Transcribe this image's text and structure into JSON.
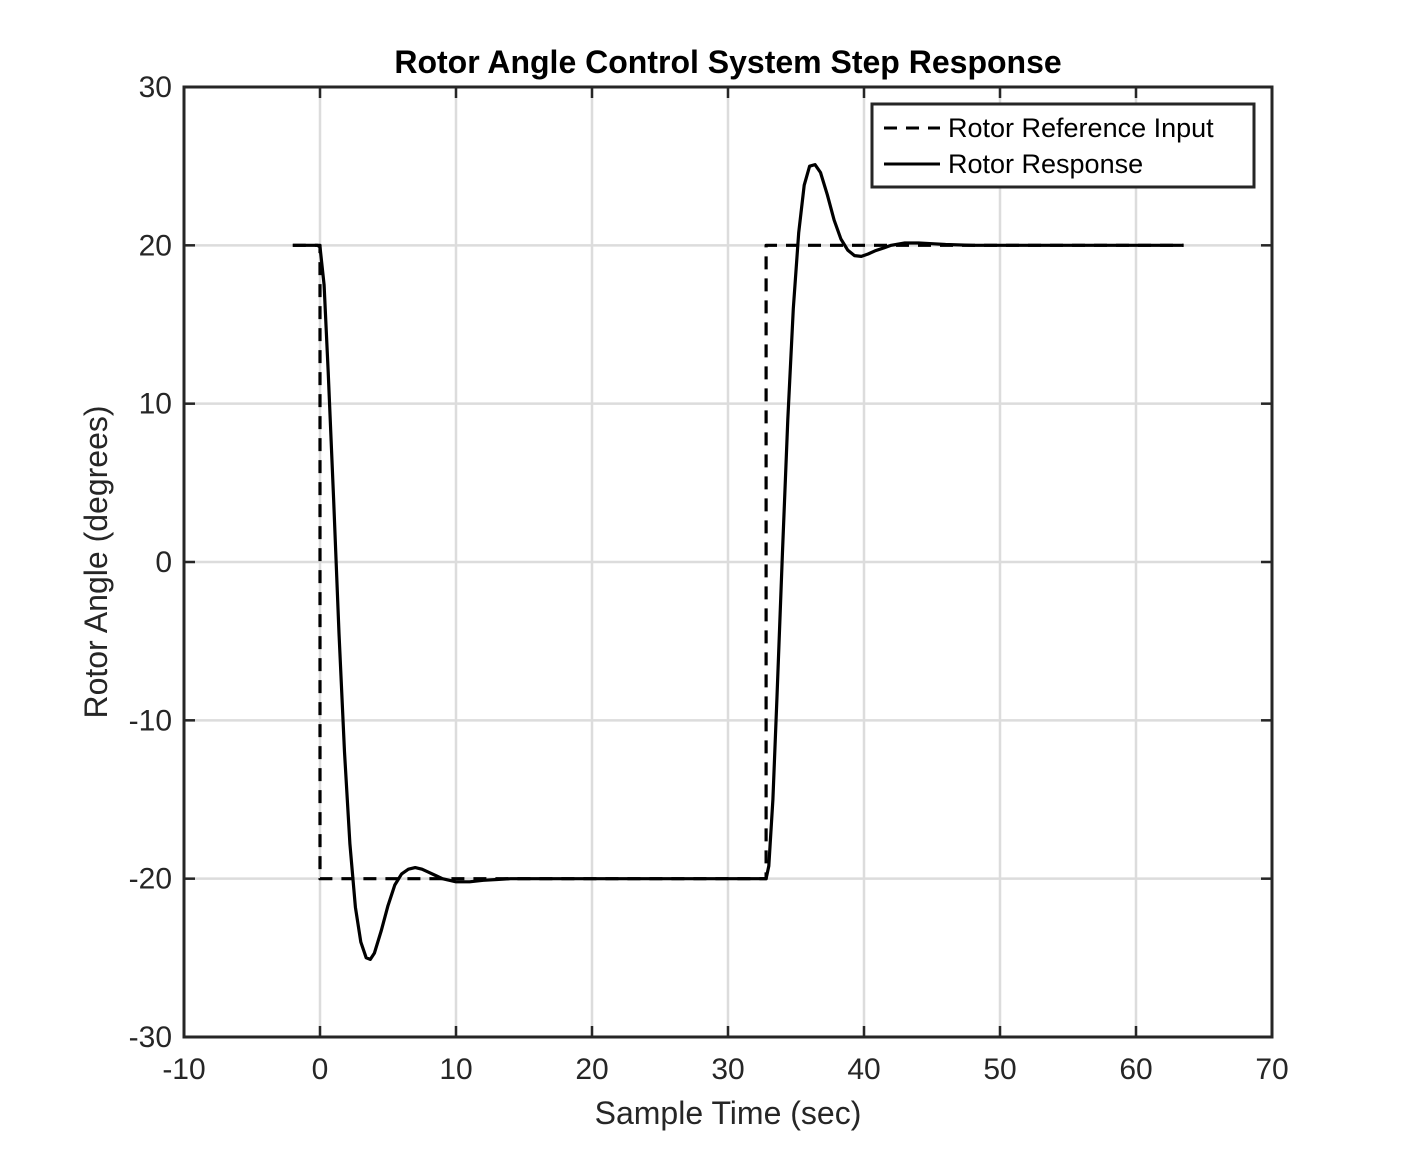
{
  "chart_data": {
    "type": "line",
    "title": "Rotor Angle Control System Step Response",
    "xlabel": "Sample Time (sec)",
    "ylabel": "Rotor Angle (degrees)",
    "xlim": [
      -10,
      70
    ],
    "ylim": [
      -30,
      30
    ],
    "xticks": [
      -10,
      0,
      10,
      20,
      30,
      40,
      50,
      60,
      70
    ],
    "yticks": [
      -30,
      -20,
      -10,
      0,
      10,
      20,
      30
    ],
    "xtick_labels": [
      "-10",
      "0",
      "10",
      "20",
      "30",
      "40",
      "50",
      "60",
      "70"
    ],
    "ytick_labels": [
      "-30",
      "-20",
      "-10",
      "0",
      "10",
      "20",
      "30"
    ],
    "grid": true,
    "legend_position": "top-right",
    "series": [
      {
        "name": "Rotor Reference Input",
        "style": "dashed",
        "color": "#000000",
        "x": [
          -2,
          0,
          0,
          32.8,
          32.8,
          63.5
        ],
        "y": [
          20,
          20,
          -20,
          -20,
          20,
          20
        ]
      },
      {
        "name": "Rotor Response",
        "style": "solid",
        "color": "#000000",
        "x": [
          -2,
          -0.2,
          0,
          0.3,
          0.6,
          1.0,
          1.4,
          1.8,
          2.2,
          2.6,
          3.0,
          3.4,
          3.7,
          4.0,
          4.5,
          5.0,
          5.5,
          6.0,
          6.5,
          7.0,
          7.5,
          8.0,
          8.5,
          9.0,
          10.0,
          11.0,
          12.0,
          13.0,
          14.0,
          16.0,
          18.0,
          20.0,
          24.0,
          28.0,
          32.8,
          33.0,
          33.3,
          33.6,
          34.0,
          34.4,
          34.8,
          35.2,
          35.6,
          36.0,
          36.4,
          36.8,
          37.3,
          37.8,
          38.3,
          38.8,
          39.3,
          39.8,
          40.3,
          40.8,
          41.5,
          42.0,
          43.0,
          44.0,
          45.0,
          46.0,
          48.0,
          50.0,
          54.0,
          58.0,
          63.5
        ],
        "y": [
          20,
          20,
          19.9,
          17.5,
          12.0,
          4.0,
          -4.5,
          -12.0,
          -17.8,
          -21.8,
          -24.0,
          -25.0,
          -25.1,
          -24.7,
          -23.3,
          -21.7,
          -20.4,
          -19.7,
          -19.4,
          -19.3,
          -19.4,
          -19.6,
          -19.8,
          -20.0,
          -20.2,
          -20.2,
          -20.1,
          -20.05,
          -20.0,
          -20.0,
          -20.0,
          -20.0,
          -20.0,
          -20.0,
          -20.0,
          -19.2,
          -15.0,
          -8.5,
          0.5,
          9.0,
          16.0,
          20.8,
          23.8,
          25.0,
          25.1,
          24.6,
          23.2,
          21.6,
          20.4,
          19.7,
          19.35,
          19.3,
          19.45,
          19.65,
          19.85,
          20.0,
          20.15,
          20.15,
          20.1,
          20.05,
          20.0,
          20.0,
          20.0,
          20.0,
          20.0
        ]
      }
    ]
  }
}
